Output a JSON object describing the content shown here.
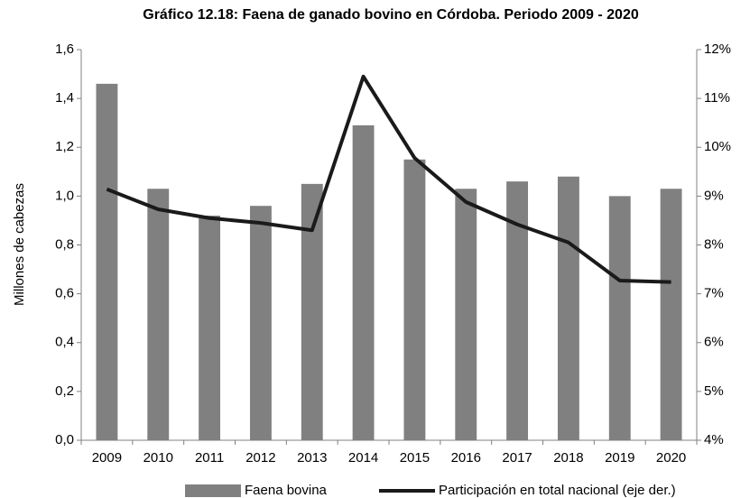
{
  "chart_data": {
    "type": "bar_line",
    "title": "Gráfico 12.18: Faena de ganado bovino en Córdoba. Periodo 2009 - 2020",
    "y_label": "Millones de cabezas",
    "categories": [
      "2009",
      "2010",
      "2011",
      "2012",
      "2013",
      "2014",
      "2015",
      "2016",
      "2017",
      "2018",
      "2019",
      "2020"
    ],
    "series": [
      {
        "name": "Faena bovina",
        "color": "#808080",
        "type": "bar",
        "values": [
          1.46,
          1.03,
          0.92,
          0.96,
          1.05,
          1.29,
          1.15,
          1.03,
          1.06,
          1.08,
          1.0,
          1.03
        ]
      },
      {
        "name": "Participación en total nacional (eje der.)",
        "color": "#1a1a1a",
        "type": "line",
        "axis": "y2",
        "values": [
          9.14,
          8.73,
          8.55,
          8.45,
          8.3,
          11.45,
          9.78,
          8.88,
          8.42,
          8.05,
          7.27,
          7.24
        ]
      }
    ],
    "ylim": [
      0,
      1.6
    ],
    "yticks": [
      {
        "value": 0,
        "label": "0,0"
      },
      {
        "value": 0.2,
        "label": "0,2"
      },
      {
        "value": 0.4,
        "label": "0,4"
      },
      {
        "value": 0.6,
        "label": "0,6"
      },
      {
        "value": 0.8,
        "label": "0,8"
      },
      {
        "value": 1.0,
        "label": "1,0"
      },
      {
        "value": 1.2,
        "label": "1,2"
      },
      {
        "value": 1.4,
        "label": "1,4"
      },
      {
        "value": 1.6,
        "label": "1,6"
      }
    ],
    "y2lim": [
      4,
      12
    ],
    "y2ticks": [
      {
        "value": 4,
        "label": "4%"
      },
      {
        "value": 5,
        "label": "5%"
      },
      {
        "value": 6,
        "label": "6%"
      },
      {
        "value": 7,
        "label": "7%"
      },
      {
        "value": 8,
        "label": "8%"
      },
      {
        "value": 9,
        "label": "9%"
      },
      {
        "value": 10,
        "label": "10%"
      },
      {
        "value": 11,
        "label": "11%"
      },
      {
        "value": 12,
        "label": "12%"
      }
    ],
    "legend": "bottom"
  }
}
